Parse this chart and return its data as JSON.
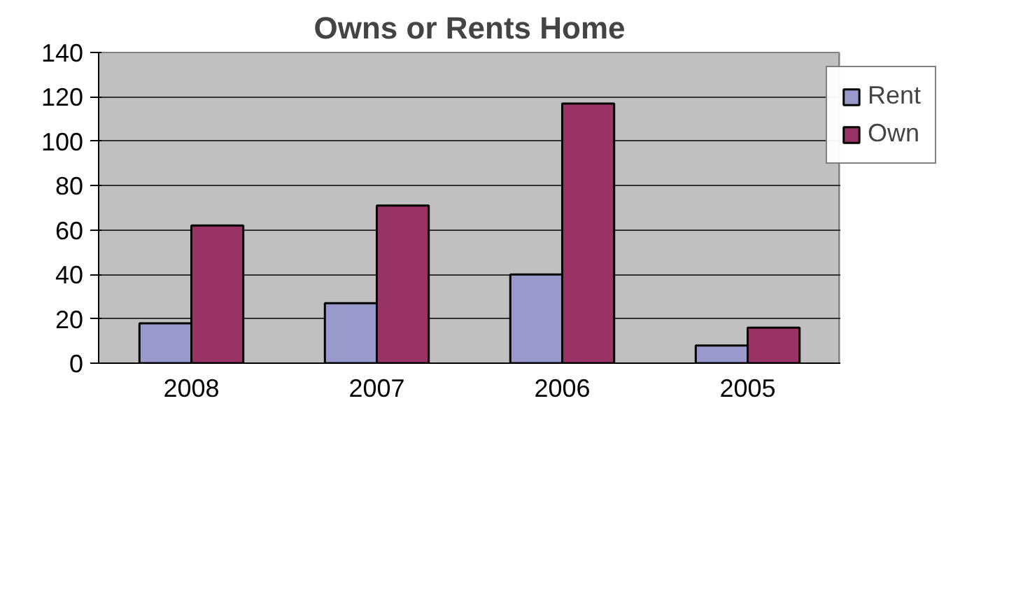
{
  "chart_data": {
    "type": "bar",
    "title": "Owns or Rents Home",
    "categories": [
      "2008",
      "2007",
      "2006",
      "2005"
    ],
    "series": [
      {
        "name": "Rent",
        "color": "#9999cc",
        "values": [
          18,
          27,
          40,
          8
        ]
      },
      {
        "name": "Own",
        "color": "#993366",
        "values": [
          62,
          71,
          117,
          16
        ]
      }
    ],
    "ylim": [
      0,
      140
    ],
    "yticks": [
      0,
      20,
      40,
      60,
      80,
      100,
      120,
      140
    ],
    "grid": "y",
    "legend": "right"
  }
}
